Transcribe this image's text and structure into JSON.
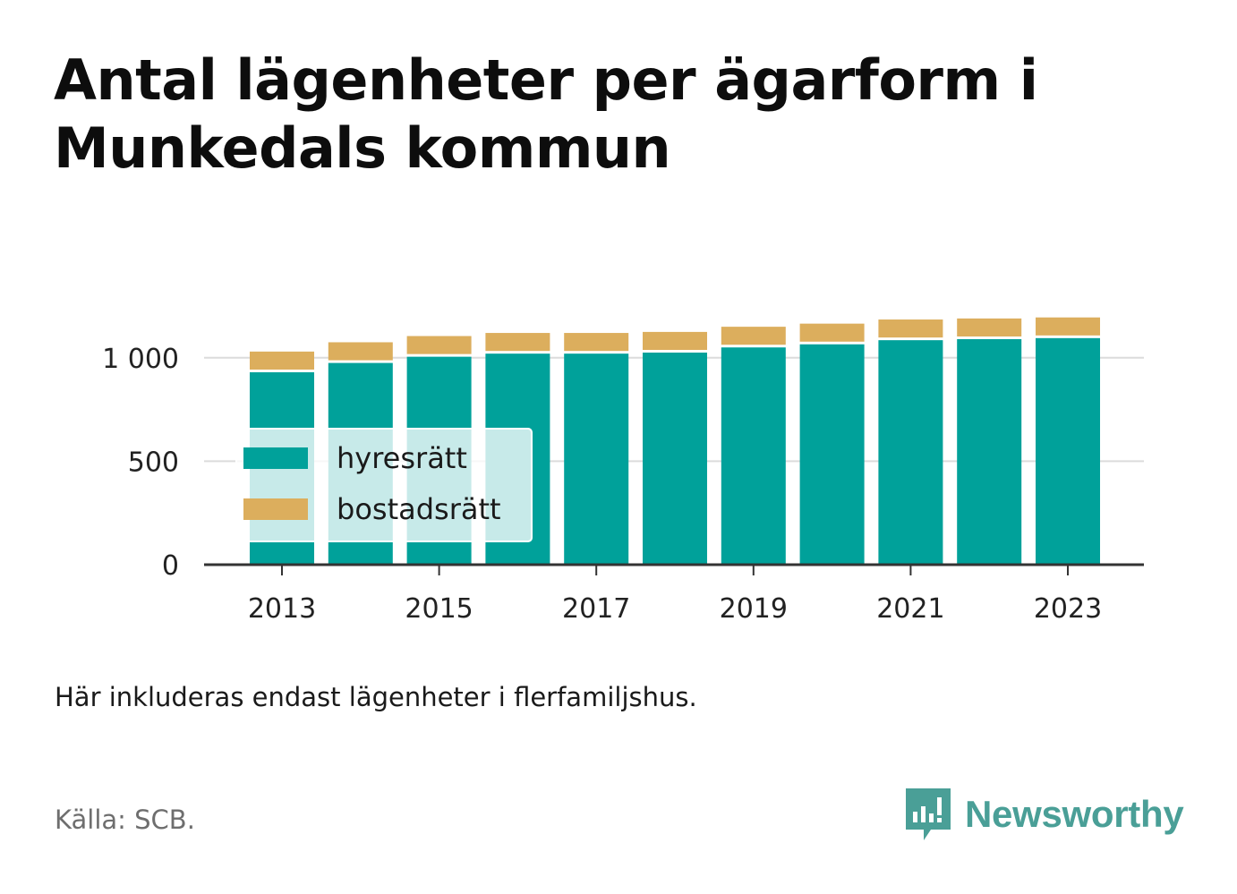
{
  "header": {
    "title": "Antal lägenheter per ägarform i Munkedals kommun"
  },
  "chart_data": {
    "type": "bar",
    "stacked": true,
    "title": "Antal lägenheter per ägarform i Munkedals kommun",
    "categories": [
      "2013",
      "2014",
      "2015",
      "2016",
      "2017",
      "2018",
      "2019",
      "2020",
      "2021",
      "2022",
      "2023"
    ],
    "x_tick_labels": [
      "2013",
      "2015",
      "2017",
      "2019",
      "2021",
      "2023"
    ],
    "y_ticks": [
      0,
      500,
      1000
    ],
    "y_tick_labels": [
      "0",
      "500",
      "1 000"
    ],
    "ylim": [
      0,
      1250
    ],
    "grid": true,
    "legend_position": "bottom-left",
    "series": [
      {
        "name": "hyresrätt",
        "color": "#00a19a",
        "values": [
          930,
          975,
          1005,
          1020,
          1020,
          1025,
          1050,
          1065,
          1085,
          1090,
          1095
        ]
      },
      {
        "name": "bostadsrätt",
        "color": "#dcae5d",
        "values": [
          100,
          100,
          100,
          100,
          100,
          100,
          100,
          100,
          100,
          100,
          100
        ]
      }
    ]
  },
  "footer": {
    "note": "Här inkluderas endast lägenheter i flerfamiljshus.",
    "source": "Källa: SCB.",
    "brand": "Newsworthy",
    "brand_color": "#4a9f97"
  }
}
